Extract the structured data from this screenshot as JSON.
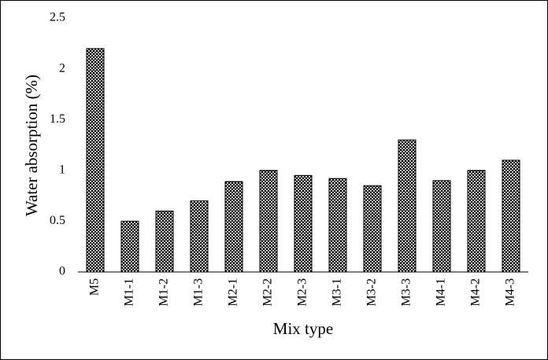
{
  "chart_data": {
    "type": "bar",
    "x_label": "Mix type",
    "y_label": "Water absorption (%)",
    "categories": [
      "M5",
      "M1-1",
      "M1-2",
      "M1-3",
      "M2-1",
      "M2-2",
      "M2-3",
      "M3-1",
      "M3-2",
      "M3-3",
      "M4-1",
      "M4-2",
      "M4-3"
    ],
    "values": [
      2.2,
      0.5,
      0.6,
      0.7,
      0.89,
      1.0,
      0.95,
      0.92,
      0.85,
      1.3,
      0.9,
      1.0,
      1.1
    ],
    "color": "#000000",
    "ylim": [
      0,
      2.5
    ],
    "yticks": [
      0,
      0.5,
      1,
      1.5,
      2,
      2.5
    ],
    "grid": false
  }
}
